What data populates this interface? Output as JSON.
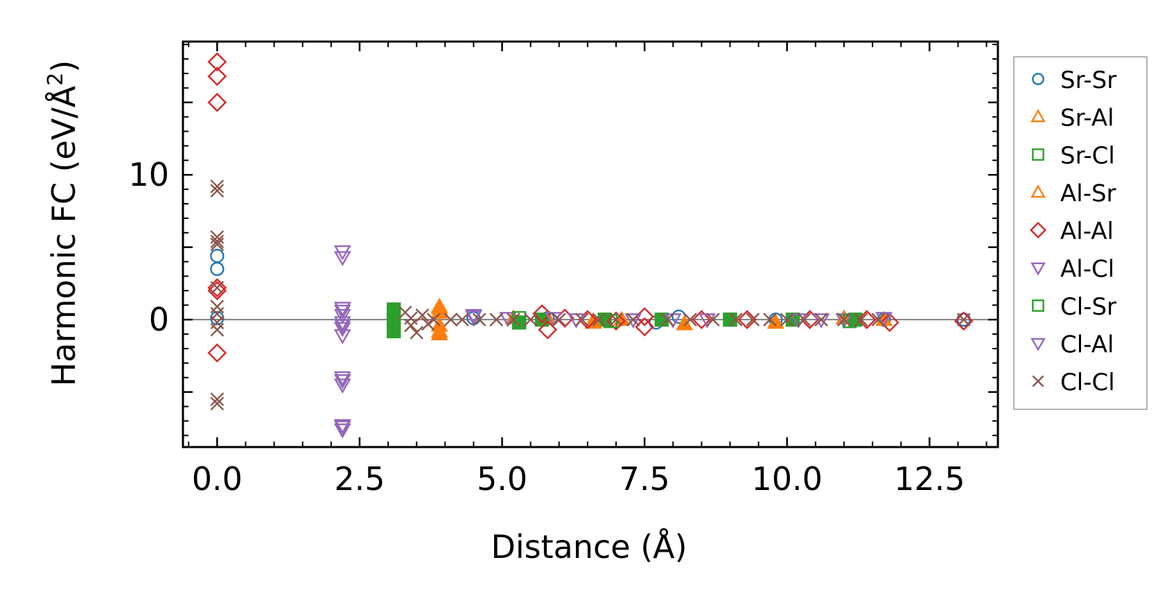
{
  "chart_data": {
    "type": "scatter",
    "xlabel": "Distance (Å)",
    "ylabel": "Harmonic FC (eV/Å",
    "ylabel_sup": "2",
    "ylabel_end": ")",
    "xlim": [
      -0.6,
      13.7
    ],
    "ylim": [
      -8.8,
      19.2
    ],
    "xticks": [
      0.0,
      2.5,
      5.0,
      7.5,
      10.0,
      12.5
    ],
    "xtick_labels": [
      "0.0",
      "2.5",
      "5.0",
      "7.5",
      "10.0",
      "12.5"
    ],
    "yticks": [
      0,
      10
    ],
    "ytick_labels": [
      "0",
      "10"
    ],
    "hline": 0,
    "legend_position": "outside-right",
    "series": [
      {
        "name": "Sr-Sr",
        "marker": "circle",
        "color": "#1f77b4",
        "filled": false,
        "points": [
          [
            0.0,
            4.4
          ],
          [
            0.0,
            3.5
          ],
          [
            0.0,
            0.1
          ],
          [
            4.5,
            0.1
          ],
          [
            5.8,
            0.1
          ],
          [
            7.7,
            -0.2
          ],
          [
            8.1,
            0.2
          ],
          [
            9.8,
            0.0
          ],
          [
            11.7,
            0.0
          ],
          [
            13.1,
            0.0
          ]
        ]
      },
      {
        "name": "Sr-Al",
        "marker": "triangle-up",
        "color": "#ff7f0e",
        "filled": true,
        "points": [
          [
            3.9,
            0.9
          ],
          [
            3.9,
            0.5
          ],
          [
            3.9,
            -0.4
          ],
          [
            3.9,
            -1.0
          ],
          [
            5.2,
            0.1
          ],
          [
            5.8,
            0.1
          ],
          [
            6.6,
            -0.2
          ],
          [
            7.1,
            0.0
          ],
          [
            8.2,
            -0.3
          ],
          [
            9.8,
            -0.2
          ],
          [
            11.0,
            0.1
          ],
          [
            11.7,
            0.0
          ]
        ]
      },
      {
        "name": "Sr-Cl",
        "marker": "square",
        "color": "#2ca02c",
        "filled": true,
        "points": [
          [
            3.1,
            0.7
          ],
          [
            3.1,
            0.4
          ],
          [
            3.1,
            0.1
          ],
          [
            3.1,
            -0.2
          ],
          [
            3.1,
            -0.5
          ],
          [
            3.1,
            -0.8
          ],
          [
            5.3,
            -0.2
          ],
          [
            5.7,
            0.0
          ],
          [
            6.8,
            0.0
          ],
          [
            7.8,
            0.0
          ],
          [
            9.0,
            0.0
          ],
          [
            10.1,
            0.0
          ],
          [
            11.2,
            0.0
          ]
        ]
      },
      {
        "name": "Al-Sr",
        "marker": "triangle-up",
        "color": "#ff7f0e",
        "filled": false,
        "points": [
          [
            3.9,
            0.8
          ],
          [
            3.9,
            -0.8
          ],
          [
            6.6,
            -0.1
          ],
          [
            8.2,
            -0.3
          ],
          [
            9.8,
            -0.2
          ]
        ]
      },
      {
        "name": "Al-Al",
        "marker": "diamond",
        "color": "#d62728",
        "filled": false,
        "points": [
          [
            0.0,
            17.8
          ],
          [
            0.0,
            16.8
          ],
          [
            0.0,
            15.0
          ],
          [
            0.0,
            2.2
          ],
          [
            0.0,
            2.0
          ],
          [
            0.0,
            -2.3
          ],
          [
            5.7,
            0.4
          ],
          [
            5.8,
            -0.7
          ],
          [
            6.1,
            0.1
          ],
          [
            6.5,
            0.0
          ],
          [
            7.0,
            -0.1
          ],
          [
            7.5,
            0.2
          ],
          [
            7.5,
            -0.5
          ],
          [
            8.5,
            0.0
          ],
          [
            9.3,
            0.0
          ],
          [
            10.4,
            0.0
          ],
          [
            11.4,
            0.0
          ],
          [
            11.8,
            -0.2
          ],
          [
            13.1,
            -0.1
          ]
        ]
      },
      {
        "name": "Al-Cl",
        "marker": "triangle-down",
        "color": "#9467bd",
        "filled": false,
        "points": [
          [
            2.2,
            4.7
          ],
          [
            2.2,
            4.3
          ],
          [
            2.2,
            0.8
          ],
          [
            2.2,
            0.3
          ],
          [
            2.2,
            -0.2
          ],
          [
            2.2,
            -0.6
          ],
          [
            2.2,
            -1.1
          ],
          [
            2.2,
            -4.0
          ],
          [
            2.2,
            -4.5
          ],
          [
            2.2,
            -7.3
          ],
          [
            2.2,
            -7.6
          ],
          [
            4.5,
            0.3
          ],
          [
            5.1,
            0.1
          ],
          [
            5.9,
            0.1
          ],
          [
            7.3,
            0.0
          ],
          [
            8.6,
            0.0
          ],
          [
            10.6,
            0.0
          ],
          [
            11.0,
            0.0
          ],
          [
            11.7,
            0.1
          ]
        ]
      },
      {
        "name": "Cl-Sr",
        "marker": "square",
        "color": "#2ca02c",
        "filled": false,
        "points": [
          [
            3.1,
            0.2
          ],
          [
            5.3,
            0.1
          ],
          [
            6.9,
            -0.1
          ],
          [
            9.0,
            0.0
          ],
          [
            11.1,
            -0.1
          ]
        ]
      },
      {
        "name": "Cl-Al",
        "marker": "triangle-down",
        "color": "#9467bd",
        "filled": false,
        "points": [
          [
            2.2,
            0.6
          ],
          [
            2.2,
            -0.4
          ],
          [
            2.2,
            -4.2
          ],
          [
            2.2,
            -7.4
          ],
          [
            4.5,
            0.2
          ],
          [
            6.3,
            0.0
          ],
          [
            8.0,
            0.0
          ],
          [
            10.2,
            0.0
          ]
        ]
      },
      {
        "name": "Cl-Cl",
        "marker": "x",
        "color": "#8c564b",
        "filled": false,
        "points": [
          [
            0.0,
            9.2
          ],
          [
            0.0,
            8.9
          ],
          [
            0.0,
            5.7
          ],
          [
            0.0,
            5.4
          ],
          [
            0.0,
            5.2
          ],
          [
            0.0,
            2.2
          ],
          [
            0.0,
            0.9
          ],
          [
            0.0,
            0.4
          ],
          [
            0.0,
            -0.2
          ],
          [
            0.0,
            -0.7
          ],
          [
            0.0,
            -5.5
          ],
          [
            0.0,
            -5.8
          ],
          [
            3.3,
            0.5
          ],
          [
            3.4,
            0.1
          ],
          [
            3.4,
            -0.4
          ],
          [
            3.5,
            -0.9
          ],
          [
            3.6,
            0.3
          ],
          [
            3.7,
            -0.3
          ],
          [
            3.8,
            0.0
          ],
          [
            4.1,
            0.0
          ],
          [
            4.3,
            0.0
          ],
          [
            4.6,
            0.0
          ],
          [
            4.9,
            0.0
          ],
          [
            5.2,
            0.0
          ],
          [
            5.5,
            0.0
          ],
          [
            6.0,
            0.0
          ],
          [
            6.4,
            0.0
          ],
          [
            6.7,
            0.0
          ],
          [
            7.0,
            0.0
          ],
          [
            7.3,
            0.0
          ],
          [
            7.9,
            0.0
          ],
          [
            8.3,
            0.0
          ],
          [
            8.7,
            0.0
          ],
          [
            9.1,
            0.0
          ],
          [
            9.4,
            0.0
          ],
          [
            9.7,
            0.0
          ],
          [
            10.0,
            0.0
          ],
          [
            10.3,
            0.0
          ],
          [
            10.6,
            0.0
          ],
          [
            11.0,
            0.0
          ],
          [
            11.3,
            0.0
          ],
          [
            11.6,
            0.0
          ],
          [
            13.1,
            0.0
          ]
        ]
      }
    ]
  }
}
